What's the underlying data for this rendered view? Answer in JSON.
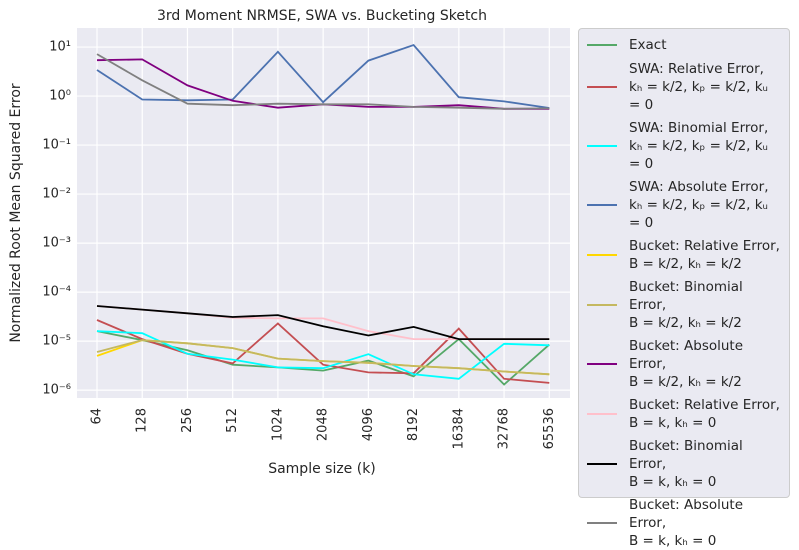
{
  "chart_data": {
    "type": "line",
    "title": "3rd Moment NRMSE, SWA vs. Bucketing Sketch",
    "x_label": "Sample size (k)",
    "y_label": "Normalized Root Mean Squared Error",
    "log_y": true,
    "grid": true,
    "legend": "outside right",
    "categories": [
      "64",
      "128",
      "256",
      "512",
      "1024",
      "2048",
      "4096",
      "8192",
      "16384",
      "32768",
      "65536"
    ],
    "ylim": [
      6.9e-07,
      24.5
    ],
    "yticks": [
      {
        "value": 1e-06,
        "label": "10⁻⁶"
      },
      {
        "value": 1e-05,
        "label": "10⁻⁵"
      },
      {
        "value": 0.0001,
        "label": "10⁻⁴"
      },
      {
        "value": 0.001,
        "label": "10⁻³"
      },
      {
        "value": 0.01,
        "label": "10⁻²"
      },
      {
        "value": 0.1,
        "label": "10⁻¹"
      },
      {
        "value": 1,
        "label": "10⁰"
      },
      {
        "value": 10,
        "label": "10¹"
      }
    ],
    "series": [
      {
        "name": "Exact",
        "color": "#55a868",
        "values": [
          1.6e-05,
          1.05e-05,
          6.5e-06,
          3.3e-06,
          2.9e-06,
          2.5e-06,
          4e-06,
          1.9e-06,
          1.1e-05,
          1.3e-06,
          8.5e-06
        ]
      },
      {
        "name": "SWA: Relative Error,\nkₕ = k/2, kₚ = k/2, kᵤ = 0",
        "color": "#c44e52",
        "values": [
          2.7e-05,
          1.1e-05,
          5.5e-06,
          3.5e-06,
          2.3e-05,
          3.3e-06,
          2.3e-06,
          2.2e-06,
          1.8e-05,
          1.7e-06,
          1.4e-06
        ]
      },
      {
        "name": "SWA: Binomial Error,\nkₕ = k/2, kₚ = k/2, kᵤ = 0",
        "color": "#00ffff",
        "values": [
          1.6e-05,
          1.45e-05,
          5.5e-06,
          4.2e-06,
          2.9e-06,
          2.8e-06,
          5.4e-06,
          2.1e-06,
          1.7e-06,
          8.8e-06,
          8.2e-06
        ]
      },
      {
        "name": "SWA: Absolute Error,\nkₕ = k/2, kₚ = k/2, kᵤ = 0",
        "color": "#4c72b0",
        "values": [
          3.4,
          0.85,
          0.82,
          0.85,
          8,
          0.75,
          5.3,
          11,
          0.95,
          0.78,
          0.57
        ]
      },
      {
        "name": "Bucket: Relative Error,\nB = k/2, kₕ = k/2",
        "color": "#ffd700",
        "values": [
          5e-06,
          1.05e-05,
          9e-06,
          7.2e-06,
          4.4e-06,
          3.9e-06,
          3.6e-06,
          3.1e-06,
          2.8e-06,
          2.4e-06,
          2.1e-06
        ]
      },
      {
        "name": "Bucket: Binomial Error,\nB = k/2, kₕ = k/2",
        "color": "#c4b860",
        "values": [
          6e-06,
          1.05e-05,
          9e-06,
          7.2e-06,
          4.4e-06,
          3.9e-06,
          3.6e-06,
          3.1e-06,
          2.8e-06,
          2.4e-06,
          2.1e-06
        ]
      },
      {
        "name": "Bucket: Absolute Error,\nB = k/2, kₕ = k/2",
        "color": "#800080",
        "values": [
          5.4,
          5.6,
          1.65,
          0.8,
          0.58,
          0.68,
          0.6,
          0.6,
          0.65,
          0.55,
          0.55
        ]
      },
      {
        "name": "Bucket: Relative Error,\nB = k, kₕ = 0",
        "color": "#ffc0cb",
        "values": [
          5.2e-05,
          4.4e-05,
          3.7e-05,
          3e-05,
          2.9e-05,
          2.9e-05,
          1.6e-05,
          1.1e-05,
          1.1e-05,
          1.1e-05,
          1.1e-05
        ]
      },
      {
        "name": "Bucket: Binomial Error,\nB = k, kₕ = 0",
        "color": "#000000",
        "values": [
          5.2e-05,
          4.4e-05,
          3.7e-05,
          3.1e-05,
          3.4e-05,
          2e-05,
          1.3e-05,
          1.95e-05,
          1.1e-05,
          1.1e-05,
          1.1e-05
        ]
      },
      {
        "name": "Bucket: Absolute Error,\nB = k, kₕ = 0",
        "color": "#808080",
        "values": [
          7.2,
          2.1,
          0.7,
          0.65,
          0.7,
          0.68,
          0.68,
          0.6,
          0.58,
          0.55,
          0.56
        ]
      }
    ]
  }
}
